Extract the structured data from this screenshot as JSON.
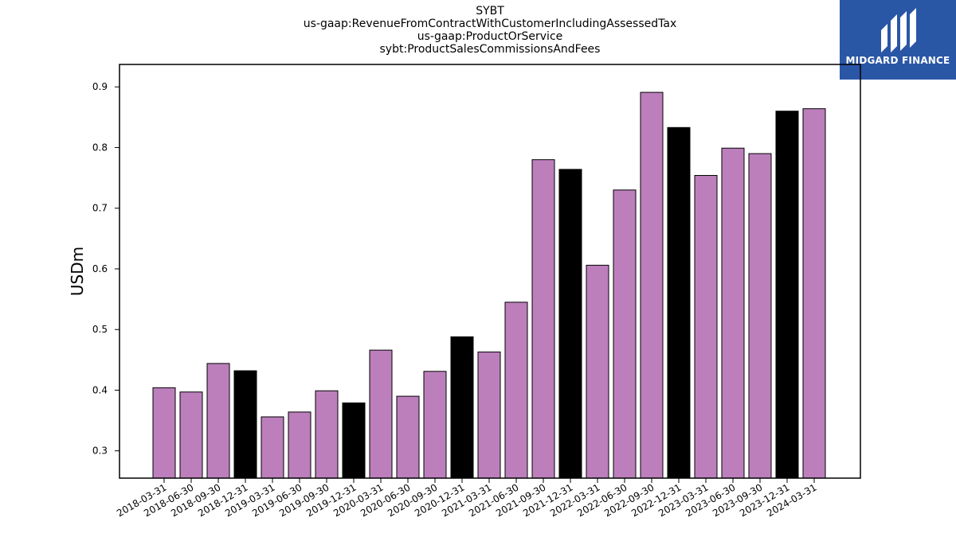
{
  "title_lines": [
    "SYBT",
    "us-gaap:RevenueFromContractWithCustomerIncludingAssessedTax",
    "us-gaap:ProductOrService",
    "sybt:ProductSalesCommissionsAndFees"
  ],
  "logo": {
    "text": "MIDGARD FINANCE",
    "background": "#2a56a6",
    "icon": "midgard-logo-icon"
  },
  "chart_data": {
    "type": "bar",
    "title": "SYBT us-gaap:RevenueFromContractWithCustomerIncludingAssessedTax us-gaap:ProductOrService sybt:ProductSalesCommissionsAndFees",
    "xlabel": "",
    "ylabel": "USDm",
    "ylim": [
      0.255,
      0.937
    ],
    "yticks": [
      0.3,
      0.4,
      0.5,
      0.6,
      0.7,
      0.8,
      0.9
    ],
    "grid": false,
    "colors": {
      "quarter": "#bc7fbc",
      "year_end": "#000000"
    },
    "categories": [
      "2018-03-31",
      "2018-06-30",
      "2018-09-30",
      "2018-12-31",
      "2019-03-31",
      "2019-06-30",
      "2019-09-30",
      "2019-12-31",
      "2020-03-31",
      "2020-06-30",
      "2020-09-30",
      "2020-12-31",
      "2021-03-31",
      "2021-06-30",
      "2021-09-30",
      "2021-12-31",
      "2022-03-31",
      "2022-06-30",
      "2022-09-30",
      "2022-12-31",
      "2023-03-31",
      "2023-06-30",
      "2023-09-30",
      "2023-12-31",
      "2024-03-31"
    ],
    "values": [
      0.404,
      0.397,
      0.444,
      0.432,
      0.356,
      0.364,
      0.399,
      0.379,
      0.466,
      0.39,
      0.431,
      0.488,
      0.463,
      0.545,
      0.78,
      0.764,
      0.606,
      0.73,
      0.891,
      0.833,
      0.754,
      0.799,
      0.79,
      0.86,
      0.864
    ]
  }
}
